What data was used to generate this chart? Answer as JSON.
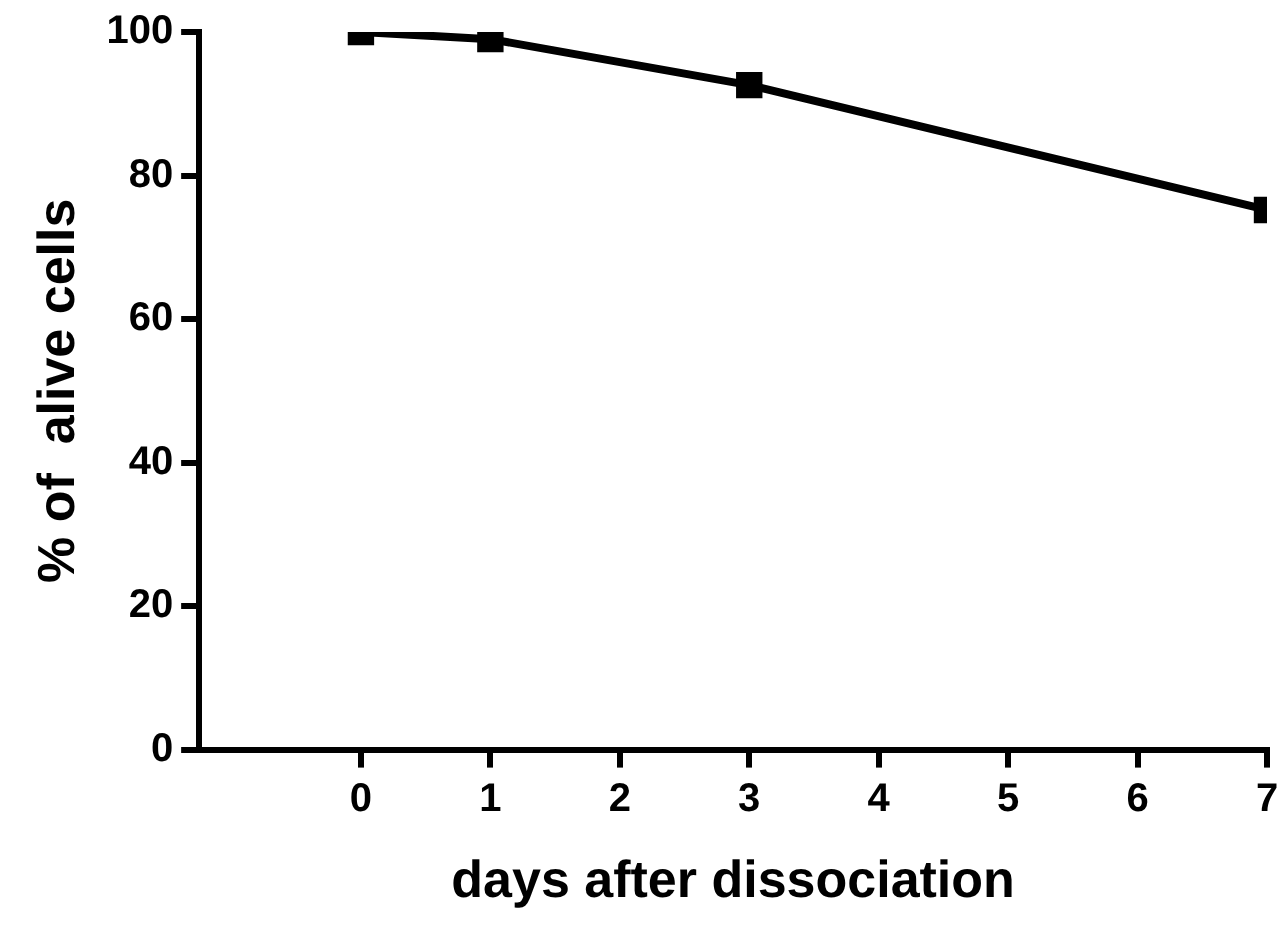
{
  "chart_data": {
    "type": "line",
    "xlabel": "days after dissociation",
    "ylabel": "% of  alive cells",
    "x": [
      0,
      1,
      3,
      7
    ],
    "series": [
      {
        "color": "#000000",
        "values": [
          100,
          99,
          92.6,
          75.2
        ]
      }
    ],
    "xlim": [
      -1.25,
      7
    ],
    "xticks": [
      0,
      1,
      2,
      3,
      4,
      5,
      6,
      7
    ],
    "ylim": [
      0,
      100
    ],
    "yticks": [
      0,
      20,
      40,
      60,
      80,
      100
    ],
    "grid": false,
    "legend": false,
    "marker": "square",
    "line_style": "solid"
  }
}
